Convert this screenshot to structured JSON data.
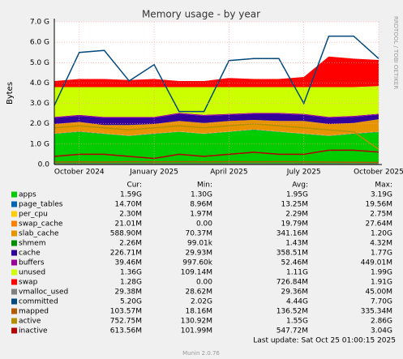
{
  "chart_data": {
    "type": "area",
    "title": "Memory usage - by year",
    "y_label": "Bytes",
    "side_label": "RRDTOOL / TOBI OETIKER",
    "x": [
      "2024-09",
      "2024-10",
      "2024-11",
      "2024-12",
      "2025-01",
      "2025-02",
      "2025-03",
      "2025-04",
      "2025-05",
      "2025-06",
      "2025-07",
      "2025-08",
      "2025-09",
      "2025-10"
    ],
    "xlim": [
      "2024-09",
      "2025-10"
    ],
    "xticks": [
      {
        "value": "2024-10",
        "label": "October 2024"
      },
      {
        "value": "2025-01",
        "label": "January 2025"
      },
      {
        "value": "2025-04",
        "label": "April 2025"
      },
      {
        "value": "2025-07",
        "label": "July 2025"
      },
      {
        "value": "2025-10",
        "label": "October 2025"
      }
    ],
    "ylim": [
      0,
      7
    ],
    "yticks": [
      {
        "value": 0,
        "label": "0.0"
      },
      {
        "value": 1,
        "label": "1.0 G"
      },
      {
        "value": 2,
        "label": "2.0 G"
      },
      {
        "value": 3,
        "label": "3.0 G"
      },
      {
        "value": 4,
        "label": "4.0 G"
      },
      {
        "value": 5,
        "label": "5.0 G"
      },
      {
        "value": 6,
        "label": "6.0 G"
      },
      {
        "value": 7,
        "label": "7.0 G"
      }
    ],
    "grid": true,
    "legend_columns": [
      "Cur:",
      "Min:",
      "Avg:",
      "Max:"
    ],
    "series": [
      {
        "name": "apps",
        "color": "#00cc00",
        "draw": "area",
        "values": [
          1.5,
          1.6,
          1.5,
          1.4,
          1.5,
          1.6,
          1.5,
          1.6,
          1.7,
          1.6,
          1.5,
          1.4,
          1.5,
          1.59
        ],
        "stats": [
          "1.59G",
          "1.30G",
          "1.95G",
          "3.19G"
        ]
      },
      {
        "name": "page_tables",
        "color": "#0066b3",
        "draw": "area",
        "values": [
          0.014,
          0.014,
          0.013,
          0.013,
          0.014,
          0.013,
          0.013,
          0.013,
          0.013,
          0.013,
          0.013,
          0.014,
          0.014,
          0.0147
        ],
        "stats": [
          "14.70M",
          "8.96M",
          "13.25M",
          "19.56M"
        ]
      },
      {
        "name": "per_cpu",
        "color": "#ffcc00",
        "draw": "area",
        "values": [
          0.0023,
          0.0023,
          0.0023,
          0.0023,
          0.0023,
          0.0023,
          0.0023,
          0.0023,
          0.0023,
          0.0023,
          0.0023,
          0.0023,
          0.0023,
          0.0023
        ],
        "stats": [
          "2.30M",
          "1.97M",
          "2.29M",
          "2.75M"
        ]
      },
      {
        "name": "swap_cache",
        "color": "#ff8000",
        "draw": "area",
        "values": [
          0.02,
          0.02,
          0.02,
          0.02,
          0.02,
          0.02,
          0.02,
          0.02,
          0.02,
          0.02,
          0.02,
          0.02,
          0.02,
          0.021
        ],
        "stats": [
          "21.01M",
          "0.00",
          "19.79M",
          "27.64M"
        ]
      },
      {
        "name": "slab_cache",
        "color": "#e69500",
        "draw": "area",
        "values": [
          0.45,
          0.45,
          0.4,
          0.5,
          0.45,
          0.5,
          0.5,
          0.5,
          0.45,
          0.5,
          0.6,
          0.55,
          0.5,
          0.59
        ],
        "stats": [
          "588.90M",
          "70.37M",
          "341.16M",
          "1.20G"
        ]
      },
      {
        "name": "shmem",
        "color": "#008f00",
        "draw": "area",
        "values": [
          0.0014,
          0.0014,
          0.0014,
          0.0014,
          0.0014,
          0.0014,
          0.0014,
          0.0014,
          0.0014,
          0.0014,
          0.0014,
          0.0014,
          0.0014,
          0.0023
        ],
        "stats": [
          "2.26M",
          "99.01k",
          "1.43M",
          "4.32M"
        ]
      },
      {
        "name": "cache",
        "color": "#330099",
        "draw": "area",
        "values": [
          0.3,
          0.3,
          0.35,
          0.35,
          0.3,
          0.35,
          0.35,
          0.3,
          0.3,
          0.35,
          0.3,
          0.3,
          0.3,
          0.23
        ],
        "stats": [
          "226.71M",
          "29.93M",
          "358.51M",
          "1.77G"
        ]
      },
      {
        "name": "buffers",
        "color": "#990099",
        "draw": "area",
        "values": [
          0.05,
          0.05,
          0.05,
          0.05,
          0.05,
          0.05,
          0.05,
          0.05,
          0.05,
          0.05,
          0.05,
          0.05,
          0.05,
          0.04
        ],
        "stats": [
          "39.46M",
          "997.60k",
          "52.46M",
          "449.01M"
        ]
      },
      {
        "name": "unused",
        "color": "#ccff00",
        "draw": "area",
        "values": [
          1.46,
          1.36,
          1.46,
          1.46,
          1.46,
          1.26,
          1.36,
          1.31,
          1.26,
          1.26,
          1.31,
          1.46,
          1.41,
          1.36
        ],
        "stats": [
          "1.36G",
          "109.14M",
          "1.11G",
          "1.99G"
        ]
      },
      {
        "name": "swap",
        "color": "#ff0000",
        "draw": "area",
        "values": [
          0.3,
          0.4,
          0.4,
          0.35,
          0.4,
          0.3,
          0.3,
          0.45,
          0.4,
          0.4,
          0.5,
          1.5,
          1.4,
          1.28
        ],
        "stats": [
          "1.28G",
          "0.00",
          "726.84M",
          "1.91G"
        ]
      },
      {
        "name": "vmalloc_used",
        "color": "#808080",
        "draw": "line",
        "values": [
          0.029,
          0.029,
          0.029,
          0.029,
          0.029,
          0.029,
          0.029,
          0.029,
          0.029,
          0.029,
          0.029,
          0.029,
          0.029,
          0.029
        ],
        "stats": [
          "29.38M",
          "28.62M",
          "29.36M",
          "45.00M"
        ]
      },
      {
        "name": "committed",
        "color": "#00487d",
        "draw": "line",
        "values": [
          2.9,
          5.5,
          5.6,
          4.1,
          4.9,
          2.6,
          2.6,
          5.1,
          5.2,
          5.2,
          3.0,
          6.3,
          6.3,
          5.2
        ],
        "stats": [
          "5.20G",
          "2.02G",
          "4.44G",
          "7.70G"
        ]
      },
      {
        "name": "mapped",
        "color": "#b35a00",
        "draw": "line",
        "values": [
          0.12,
          0.13,
          0.12,
          0.14,
          0.13,
          0.14,
          0.13,
          0.14,
          0.13,
          0.14,
          0.13,
          0.12,
          0.11,
          0.104
        ],
        "stats": [
          "103.57M",
          "18.16M",
          "136.52M",
          "335.34M"
        ]
      },
      {
        "name": "active",
        "color": "#b38f00",
        "draw": "line",
        "values": [
          1.8,
          1.9,
          1.8,
          1.7,
          1.8,
          1.9,
          1.8,
          1.9,
          2.0,
          1.9,
          1.8,
          1.7,
          1.6,
          0.75
        ],
        "stats": [
          "752.75M",
          "130.92M",
          "1.55G",
          "2.86G"
        ]
      },
      {
        "name": "inactive",
        "color": "#b30000",
        "draw": "line",
        "values": [
          0.4,
          0.5,
          0.5,
          0.4,
          0.3,
          0.5,
          0.4,
          0.5,
          0.6,
          0.5,
          0.5,
          0.7,
          0.7,
          0.61
        ],
        "stats": [
          "613.56M",
          "101.99M",
          "547.72M",
          "3.04G"
        ]
      }
    ],
    "last_update": "Last update: Sat Oct 25 01:00:15 2025",
    "footer": "Munin 2.0.76"
  }
}
